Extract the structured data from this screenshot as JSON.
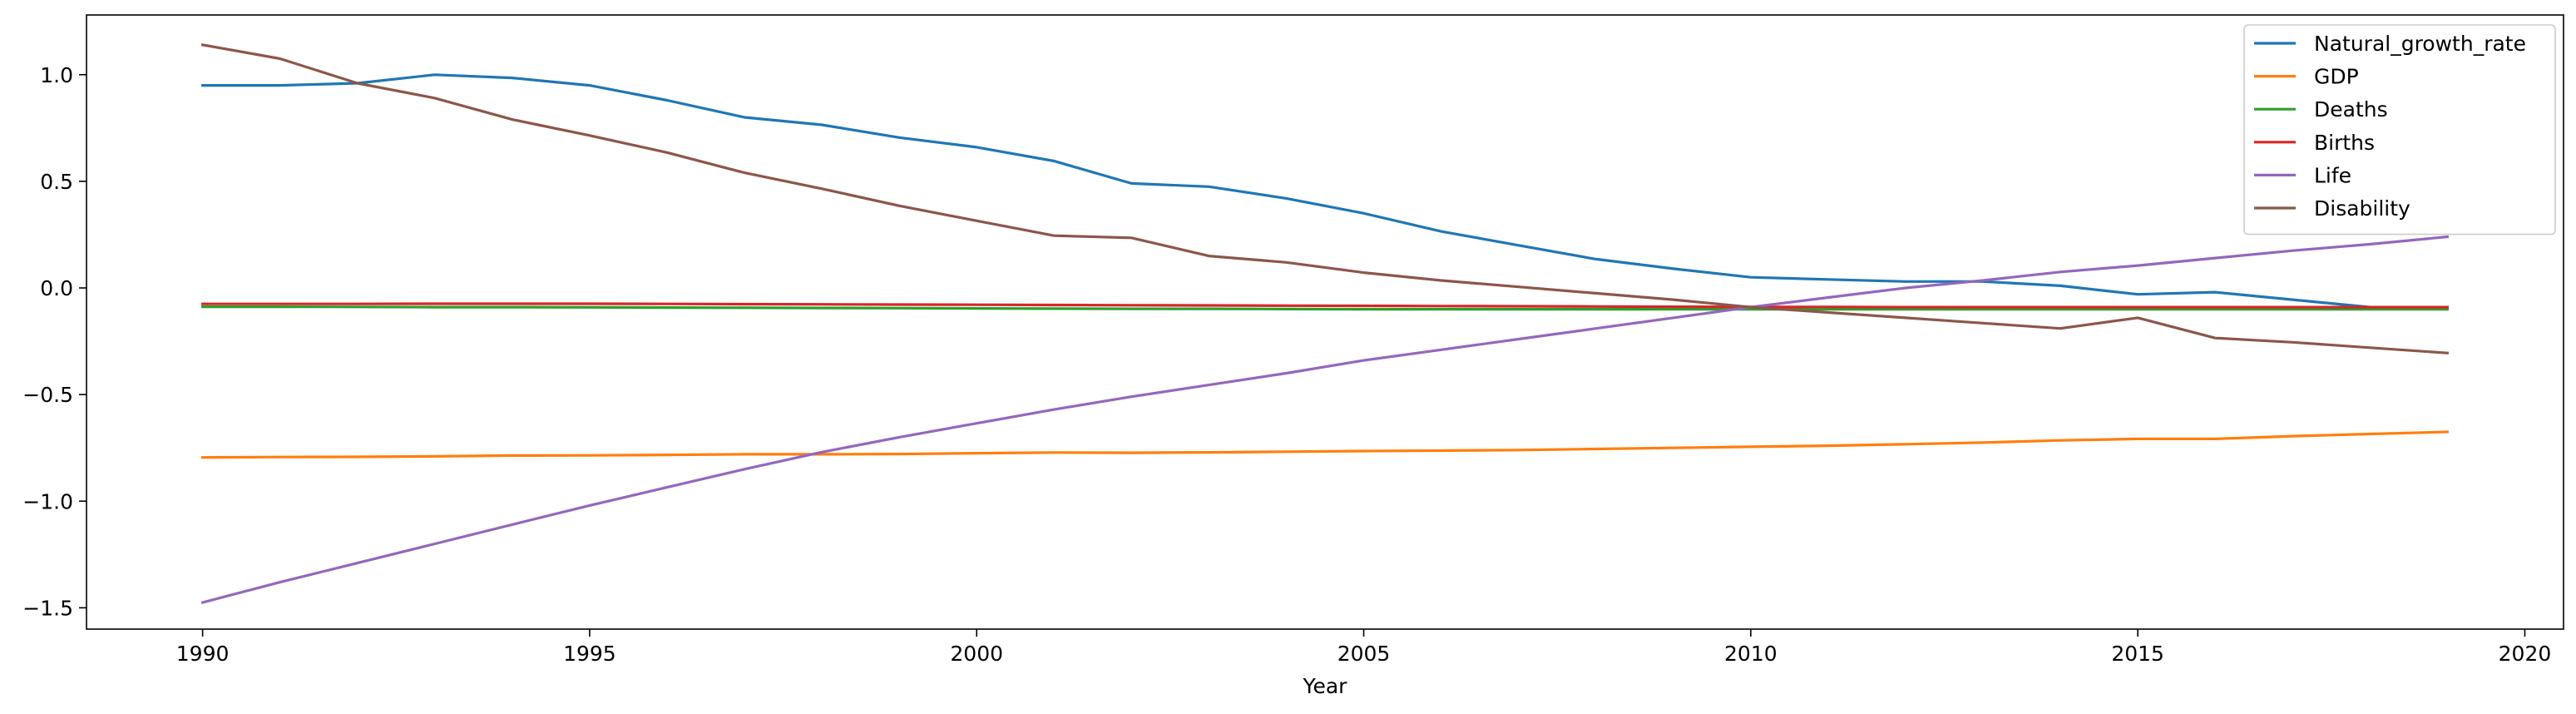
{
  "chart_data": {
    "type": "line",
    "title": "",
    "xlabel": "Year",
    "ylabel": "",
    "xlim": [
      1988.5,
      2020.5
    ],
    "ylim": [
      -1.6,
      1.28
    ],
    "xticks": [
      1990,
      1995,
      2000,
      2005,
      2010,
      2015,
      2020
    ],
    "yticks": [
      -1.5,
      -1.0,
      -0.5,
      0.0,
      0.5,
      1.0
    ],
    "ytick_labels": [
      "−1.5",
      "−1.0",
      "−0.5",
      "0.0",
      "0.5",
      "1.0"
    ],
    "grid": false,
    "legend_position": "top-right",
    "x": [
      1990,
      1991,
      1992,
      1993,
      1994,
      1995,
      1996,
      1997,
      1998,
      1999,
      2000,
      2001,
      2002,
      2003,
      2004,
      2005,
      2006,
      2007,
      2008,
      2009,
      2010,
      2011,
      2012,
      2013,
      2014,
      2015,
      2016,
      2017,
      2018,
      2019
    ],
    "series": [
      {
        "name": "Natural_growth_rate",
        "color": "#1f77b4",
        "values": [
          0.95,
          0.95,
          0.96,
          1.0,
          0.985,
          0.95,
          0.88,
          0.8,
          0.765,
          0.705,
          0.66,
          0.595,
          0.49,
          0.475,
          0.42,
          0.35,
          0.265,
          0.2,
          0.135,
          0.09,
          0.05,
          0.04,
          0.03,
          0.03,
          0.01,
          -0.03,
          -0.02,
          -0.055,
          -0.09,
          -0.09
        ]
      },
      {
        "name": "GDP",
        "color": "#ff7f0e",
        "values": [
          -0.795,
          -0.793,
          -0.792,
          -0.79,
          -0.786,
          -0.785,
          -0.783,
          -0.78,
          -0.78,
          -0.779,
          -0.775,
          -0.772,
          -0.773,
          -0.771,
          -0.768,
          -0.765,
          -0.763,
          -0.76,
          -0.755,
          -0.75,
          -0.745,
          -0.74,
          -0.733,
          -0.725,
          -0.715,
          -0.708,
          -0.708,
          -0.695,
          -0.685,
          -0.675
        ]
      },
      {
        "name": "Deaths",
        "color": "#2ca02c",
        "values": [
          -0.088,
          -0.088,
          -0.089,
          -0.09,
          -0.09,
          -0.091,
          -0.092,
          -0.093,
          -0.094,
          -0.095,
          -0.096,
          -0.097,
          -0.098,
          -0.098,
          -0.099,
          -0.1,
          -0.1,
          -0.1,
          -0.1,
          -0.1,
          -0.1,
          -0.1,
          -0.1,
          -0.1,
          -0.1,
          -0.1,
          -0.1,
          -0.1,
          -0.1,
          -0.1
        ]
      },
      {
        "name": "Births",
        "color": "#d62728",
        "values": [
          -0.075,
          -0.075,
          -0.075,
          -0.074,
          -0.074,
          -0.074,
          -0.075,
          -0.076,
          -0.077,
          -0.078,
          -0.079,
          -0.08,
          -0.081,
          -0.082,
          -0.083,
          -0.084,
          -0.085,
          -0.086,
          -0.087,
          -0.088,
          -0.089,
          -0.089,
          -0.09,
          -0.09,
          -0.09,
          -0.09,
          -0.09,
          -0.09,
          -0.09,
          -0.09
        ]
      },
      {
        "name": "Life",
        "color": "#9467bd",
        "values": [
          -1.475,
          -1.38,
          -1.29,
          -1.2,
          -1.11,
          -1.02,
          -0.935,
          -0.85,
          -0.77,
          -0.7,
          -0.635,
          -0.57,
          -0.51,
          -0.455,
          -0.4,
          -0.34,
          -0.29,
          -0.24,
          -0.19,
          -0.14,
          -0.09,
          -0.045,
          0.0,
          0.035,
          0.075,
          0.105,
          0.14,
          0.175,
          0.205,
          0.24
        ]
      },
      {
        "name": "Disability",
        "color": "#8c564b",
        "values": [
          1.14,
          1.075,
          0.96,
          0.89,
          0.79,
          0.715,
          0.635,
          0.54,
          0.465,
          0.385,
          0.315,
          0.245,
          0.235,
          0.15,
          0.12,
          0.072,
          0.035,
          0.005,
          -0.025,
          -0.055,
          -0.09,
          -0.115,
          -0.14,
          -0.165,
          -0.19,
          -0.14,
          -0.235,
          -0.255,
          -0.28,
          -0.305
        ]
      }
    ]
  }
}
